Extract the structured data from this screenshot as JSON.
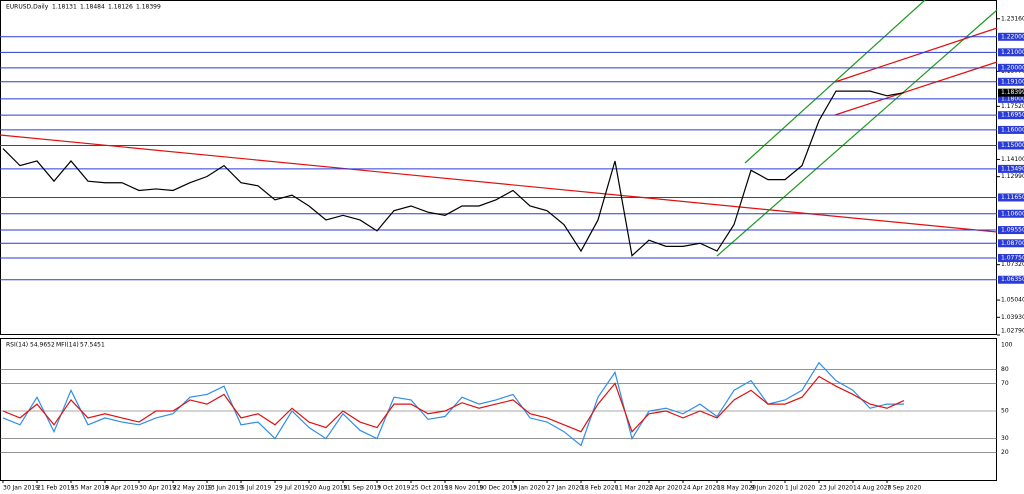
{
  "chart_data": [
    {
      "type": "line",
      "title": "EURUSD,Daily",
      "ohlc": [
        1.18131,
        1.18484,
        1.18126,
        1.18399
      ],
      "categories": [
        "30 Jan 2019",
        null,
        "21 Feb 2019",
        null,
        "15 Mar 2019",
        null,
        "8 Apr 2019",
        null,
        "30 Apr 2019",
        null,
        "22 May 2019",
        null,
        "13 Jun 2019",
        null,
        "5 Jul 2019",
        null,
        "29 Jul 2019",
        null,
        "20 Aug 2019",
        null,
        "11 Sep 2019",
        null,
        "3 Oct 2019",
        null,
        "25 Oct 2019",
        null,
        "18 Nov 2019",
        null,
        "10 Dec 2019",
        null,
        "3 Jan 2020",
        null,
        "27 Jan 2020",
        null,
        "18 Feb 2020",
        null,
        "11 Mar 2020",
        null,
        "2 Apr 2020",
        null,
        "24 Apr 2020",
        null,
        "18 May 2020",
        null,
        "9 Jun 2020",
        null,
        "1 Jul 2020",
        null,
        "23 Jul 2020",
        null,
        "14 Aug 2020",
        null,
        "7 Sep 2020",
        null
      ],
      "values": [
        1.148,
        1.137,
        1.14,
        1.127,
        1.14,
        1.127,
        1.126,
        1.126,
        1.121,
        1.122,
        1.121,
        1.126,
        1.13,
        1.137,
        1.126,
        1.124,
        1.115,
        1.118,
        1.111,
        1.102,
        1.105,
        1.102,
        1.095,
        1.108,
        1.111,
        1.107,
        1.105,
        1.111,
        1.111,
        1.115,
        1.121,
        1.111,
        1.108,
        1.099,
        1.082,
        1.102,
        1.14,
        1.079,
        1.089,
        1.085,
        1.085,
        1.087,
        1.082,
        1.099,
        1.134,
        1.128,
        1.128,
        1.137,
        1.166,
        1.185,
        1.185,
        1.185,
        1.182,
        1.18399
      ],
      "color": "#000000",
      "ylim": [
        1.0279,
        1.2437
      ],
      "yticks": [
        {
          "value": 1.2316,
          "label": "1.23160"
        },
        {
          "value": 1.1977,
          "label": "1.19770"
        },
        {
          "value": 1.1752,
          "label": "1.17520"
        },
        {
          "value": 1.141,
          "label": "1.14100"
        },
        {
          "value": 1.1299,
          "label": "1.12990"
        },
        {
          "value": 1.0732,
          "label": "1.07320"
        },
        {
          "value": 1.0504,
          "label": "1.05040"
        },
        {
          "value": 1.0393,
          "label": "1.03930"
        },
        {
          "value": 1.0279,
          "label": "1.02790"
        }
      ],
      "levels": [
        {
          "value": 1.22,
          "label": "1.22000"
        },
        {
          "value": 1.21,
          "label": "1.21000"
        },
        {
          "value": 1.2,
          "label": "1.20000"
        },
        {
          "value": 1.191,
          "label": "1.19100"
        },
        {
          "value": 1.18,
          "label": "1.18000"
        },
        {
          "value": 1.1695,
          "label": "1.16950"
        },
        {
          "value": 1.16,
          "label": "1.16000"
        },
        {
          "value": 1.15,
          "label": "1.15000"
        },
        {
          "value": 1.1349,
          "label": "1.13490"
        },
        {
          "value": 1.1165,
          "label": "1.11650"
        },
        {
          "value": 1.106,
          "label": "1.10600"
        },
        {
          "value": 1.0955,
          "label": "1.09550"
        },
        {
          "value": 1.087,
          "label": "1.08700"
        },
        {
          "value": 1.0775,
          "label": "1.07750"
        },
        {
          "value": 1.0635,
          "label": "1.06350"
        }
      ],
      "level_color": "#2b3bd6"
    },
    {
      "type": "line",
      "series": [
        {
          "name": "RSI(14)",
          "color": "#2f8fe8",
          "values": [
            45,
            40,
            60,
            35,
            65,
            40,
            45,
            42,
            40,
            45,
            48,
            60,
            62,
            68,
            40,
            42,
            30,
            50,
            38,
            30,
            48,
            36,
            30,
            60,
            58,
            44,
            46,
            60,
            55,
            58,
            62,
            45,
            42,
            35,
            25,
            60,
            78,
            30,
            50,
            52,
            48,
            55,
            46,
            65,
            72,
            55,
            58,
            65,
            85,
            72,
            65,
            52,
            55,
            54.9652
          ]
        },
        {
          "name": "MFI(14)",
          "color": "#e01010",
          "values": [
            50,
            45,
            55,
            40,
            58,
            45,
            48,
            45,
            42,
            50,
            50,
            58,
            55,
            62,
            45,
            48,
            40,
            52,
            42,
            38,
            50,
            42,
            38,
            55,
            55,
            48,
            50,
            56,
            52,
            55,
            58,
            48,
            45,
            40,
            35,
            55,
            70,
            35,
            48,
            50,
            45,
            50,
            45,
            58,
            65,
            55,
            55,
            60,
            75,
            68,
            62,
            55,
            52,
            57.5451
          ]
        }
      ],
      "ylim": [
        0,
        100
      ],
      "yticks": [
        20,
        30,
        50,
        70,
        80,
        100
      ]
    }
  ]
}
